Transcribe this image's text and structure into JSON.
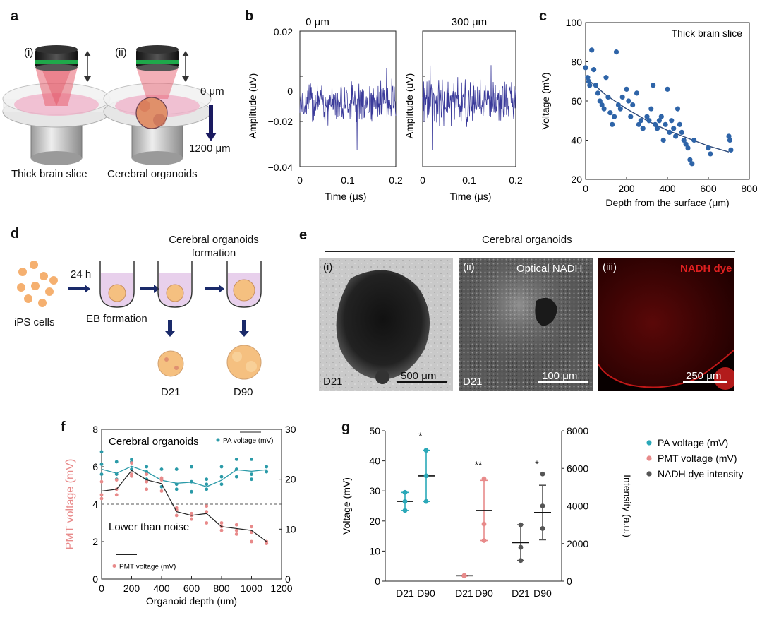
{
  "panel_labels": {
    "a": "a",
    "b": "b",
    "c": "c",
    "d": "d",
    "e": "e",
    "f": "f",
    "g": "g"
  },
  "panel_a": {
    "label_i": "(i)",
    "label_ii": "(ii)",
    "caption_i": "Thick brain slice",
    "caption_ii": "Cerebral organoids",
    "depth_top": "0 μm",
    "depth_bottom": "1200 μm",
    "colors": {
      "objective": "#2a2a2a",
      "ring": "#1fa84a",
      "beam": "#e86070",
      "dish": "#d8d8d8",
      "tissue": "#f0b0c8",
      "organoid": "#e0906a"
    }
  },
  "panel_b": {
    "title_left": "0 μm",
    "title_right": "300 μm",
    "ylabel": "Amplitude (uV)",
    "xlabel": "Time (μs)",
    "yticks": [
      "0.02",
      "0",
      "−0.02",
      "−0.04"
    ],
    "xticks": [
      "0",
      "0.1",
      "0.2"
    ],
    "line_color": "#3a3a9a"
  },
  "panel_c": {
    "annotation": "Thick brain slice",
    "point_color": "#2e64a8"
  },
  "panel_d": {
    "title": "Cerebral organoids formation",
    "ips": "iPS cells",
    "time": "24 h",
    "eb": "EB formation",
    "d21": "D21",
    "d90": "D90",
    "colors": {
      "cell": "#f5b070",
      "well": "#e8d0ec",
      "arrow": "#1a2a6a"
    }
  },
  "panel_e": {
    "title": "Cerebral organoids",
    "sub_i": "(i)",
    "sub_ii": "(ii)",
    "sub_iii": "(iii)",
    "optical": "Optical NADH",
    "dye": "NADH dye",
    "day_i": "D21",
    "day_ii": "D21",
    "scale_i": "500 μm",
    "scale_ii": "100 μm",
    "scale_iii": "250 μm"
  },
  "panel_f": {
    "annotation_top": "Cerebral organoids",
    "annotation_noise": "Lower than noise",
    "legend_pa": "PA voltage (mV)",
    "legend_pmt": "PMT voltage (mV)",
    "colors": {
      "pa": "#2a9aa8",
      "pmt": "#e88a8a",
      "line": "#222222"
    }
  },
  "panel_g": {
    "legend": [
      "PA voltage (mV)",
      "PMT voltage (mV)",
      "NADH dye intensity"
    ],
    "sig1": "*",
    "sig2": "**",
    "sig3": "*",
    "colors": {
      "pa": "#2aa8b8",
      "pmt": "#e88a8a",
      "nadh": "#555555"
    }
  },
  "chart_data": [
    {
      "id": "b",
      "type": "line",
      "title": "0 μm / 300 μm",
      "xlabel": "Time (μs)",
      "ylabel": "Amplitude (uV)",
      "xlim": [
        0,
        0.2
      ],
      "ylim": [
        -0.04,
        0.02
      ],
      "series": [
        {
          "name": "0 μm",
          "noise_center": -0.011,
          "noise_amplitude": 0.008
        },
        {
          "name": "300 μm",
          "noise_center": -0.011,
          "noise_amplitude": 0.009
        }
      ]
    },
    {
      "id": "c",
      "type": "scatter",
      "title": "",
      "xlabel": "Depth from the surface (μm)",
      "ylabel": "Voltage (mV)",
      "xlim": [
        0,
        800
      ],
      "ylim": [
        20,
        100
      ],
      "xticks": [
        0,
        200,
        400,
        600,
        800
      ],
      "yticks": [
        20,
        40,
        60,
        80,
        100
      ],
      "points": [
        [
          0,
          77
        ],
        [
          10,
          72
        ],
        [
          15,
          70
        ],
        [
          20,
          68
        ],
        [
          30,
          86
        ],
        [
          40,
          76
        ],
        [
          50,
          68
        ],
        [
          60,
          64
        ],
        [
          70,
          60
        ],
        [
          80,
          58
        ],
        [
          90,
          56
        ],
        [
          100,
          72
        ],
        [
          110,
          62
        ],
        [
          120,
          54
        ],
        [
          130,
          48
        ],
        [
          140,
          52
        ],
        [
          150,
          85
        ],
        [
          160,
          58
        ],
        [
          170,
          56
        ],
        [
          180,
          62
        ],
        [
          200,
          66
        ],
        [
          210,
          60
        ],
        [
          220,
          52
        ],
        [
          230,
          58
        ],
        [
          250,
          64
        ],
        [
          260,
          48
        ],
        [
          270,
          50
        ],
        [
          280,
          46
        ],
        [
          300,
          52
        ],
        [
          310,
          50
        ],
        [
          320,
          56
        ],
        [
          330,
          68
        ],
        [
          340,
          48
        ],
        [
          350,
          46
        ],
        [
          360,
          50
        ],
        [
          370,
          52
        ],
        [
          380,
          40
        ],
        [
          390,
          48
        ],
        [
          400,
          66
        ],
        [
          410,
          44
        ],
        [
          420,
          50
        ],
        [
          430,
          46
        ],
        [
          440,
          42
        ],
        [
          450,
          56
        ],
        [
          460,
          48
        ],
        [
          470,
          44
        ],
        [
          480,
          40
        ],
        [
          490,
          38
        ],
        [
          500,
          36
        ],
        [
          510,
          30
        ],
        [
          520,
          28
        ],
        [
          530,
          40
        ],
        [
          600,
          36
        ],
        [
          610,
          33
        ],
        [
          700,
          42
        ],
        [
          705,
          40
        ],
        [
          710,
          35
        ]
      ],
      "fit": [
        [
          0,
          72
        ],
        [
          100,
          63
        ],
        [
          200,
          56
        ],
        [
          300,
          50
        ],
        [
          400,
          45
        ],
        [
          500,
          41
        ],
        [
          600,
          37
        ],
        [
          700,
          34
        ]
      ]
    },
    {
      "id": "f",
      "type": "line",
      "title": "",
      "xlabel": "Organoid depth (um)",
      "ylabel": "PMT voltage (mV)",
      "ylabel_right": "PA voltage (mV)",
      "xlim": [
        0,
        1200
      ],
      "ylim": [
        0,
        8
      ],
      "ylim_right": [
        0,
        30
      ],
      "xticks": [
        0,
        200,
        400,
        600,
        800,
        1000,
        1200
      ],
      "yticks": [
        0,
        2,
        4,
        6,
        8
      ],
      "yticks_right": [
        0,
        10,
        20,
        30
      ],
      "noise_level": 4,
      "series": [
        {
          "name": "PMT voltage (mV)",
          "axis": "left",
          "x": [
            0,
            100,
            200,
            300,
            400,
            500,
            600,
            700,
            800,
            900,
            1000,
            1100
          ],
          "mean": [
            4.7,
            4.8,
            5.8,
            5.3,
            5.1,
            3.6,
            3.4,
            3.5,
            2.8,
            2.7,
            2.6,
            2.0
          ],
          "points": [
            [
              0,
              4.5
            ],
            [
              0,
              5.2
            ],
            [
              0,
              4.3
            ],
            [
              100,
              4.8
            ],
            [
              100,
              5.3
            ],
            [
              100,
              4.5
            ],
            [
              200,
              6.2
            ],
            [
              200,
              5.6
            ],
            [
              200,
              5.5
            ],
            [
              300,
              5.6
            ],
            [
              300,
              5.2
            ],
            [
              300,
              4.8
            ],
            [
              400,
              5.3
            ],
            [
              400,
              4.7
            ],
            [
              400,
              5.4
            ],
            [
              500,
              3.8
            ],
            [
              500,
              3.4
            ],
            [
              500,
              3.7
            ],
            [
              600,
              3.5
            ],
            [
              600,
              3.2
            ],
            [
              600,
              3.4
            ],
            [
              700,
              3.9
            ],
            [
              700,
              3.6
            ],
            [
              700,
              3.0
            ],
            [
              800,
              2.8
            ],
            [
              800,
              2.6
            ],
            [
              800,
              3.0
            ],
            [
              900,
              2.4
            ],
            [
              900,
              2.6
            ],
            [
              900,
              2.9
            ],
            [
              1000,
              2.5
            ],
            [
              1000,
              2.0
            ],
            [
              1000,
              2.8
            ],
            [
              1100,
              1.9
            ],
            [
              1100,
              2.0
            ]
          ]
        },
        {
          "name": "PA voltage (mV)",
          "axis": "right",
          "x": [
            0,
            100,
            200,
            300,
            400,
            500,
            600,
            700,
            800,
            900,
            1000,
            1100
          ],
          "mean": [
            22,
            21.2,
            22.6,
            21.5,
            19.8,
            19.2,
            19.4,
            18.5,
            19.8,
            21.9,
            21.6,
            21.9
          ],
          "points": [
            [
              0,
              25.5
            ],
            [
              0,
              23
            ],
            [
              0,
              21
            ],
            [
              100,
              21
            ],
            [
              100,
              20
            ],
            [
              100,
              23.5
            ],
            [
              200,
              23.5
            ],
            [
              200,
              22
            ],
            [
              200,
              24
            ],
            [
              300,
              22.5
            ],
            [
              300,
              20
            ],
            [
              300,
              21.5
            ],
            [
              400,
              20
            ],
            [
              400,
              18.5
            ],
            [
              400,
              22
            ],
            [
              500,
              22
            ],
            [
              500,
              18
            ],
            [
              500,
              19
            ],
            [
              600,
              22.5
            ],
            [
              600,
              19.5
            ],
            [
              600,
              17.5
            ],
            [
              700,
              19
            ],
            [
              700,
              18
            ],
            [
              700,
              20
            ],
            [
              800,
              20.5
            ],
            [
              800,
              19
            ],
            [
              800,
              22.5
            ],
            [
              900,
              22
            ],
            [
              900,
              20.5
            ],
            [
              900,
              24
            ],
            [
              1000,
              21
            ],
            [
              1000,
              20
            ],
            [
              1000,
              24
            ],
            [
              1100,
              22.5
            ],
            [
              1100,
              21.5
            ]
          ]
        }
      ]
    },
    {
      "id": "g",
      "type": "scatter",
      "title": "",
      "xlabel": "",
      "ylabel": "Voltage (mV)",
      "ylabel_right": "Intensity (a.u.)",
      "ylim": [
        0,
        50
      ],
      "ylim_right": [
        0,
        8000
      ],
      "yticks": [
        0,
        10,
        20,
        30,
        40,
        50
      ],
      "yticks_right": [
        0,
        2000,
        4000,
        6000,
        8000
      ],
      "categories": [
        "D21",
        "D90",
        "D21",
        "D90",
        "D21",
        "D90"
      ],
      "groups": [
        {
          "name": "PA voltage (mV)",
          "axis": "left",
          "D21": {
            "mean": 26.5,
            "sd": 3,
            "points": [
              23.5,
              26.5,
              29.5
            ]
          },
          "D90": {
            "mean": 35,
            "sd": 8.5,
            "points": [
              26.5,
              35,
              43.5
            ]
          }
        },
        {
          "name": "PMT voltage (mV)",
          "axis": "left",
          "D21": {
            "mean": 1.8,
            "sd": 0.1,
            "points": [
              1.7,
              1.8,
              1.9
            ]
          },
          "D90": {
            "mean": 23.5,
            "sd": 10,
            "points": [
              13.5,
              19,
              34
            ]
          }
        },
        {
          "name": "NADH dye intensity",
          "axis": "right",
          "D21": {
            "mean": 2050,
            "sd": 950,
            "points": [
              1100,
              1800,
              3000
            ]
          },
          "D90": {
            "mean": 3650,
            "sd": 1450,
            "points": [
              2800,
              4000,
              5700
            ]
          }
        }
      ]
    }
  ]
}
